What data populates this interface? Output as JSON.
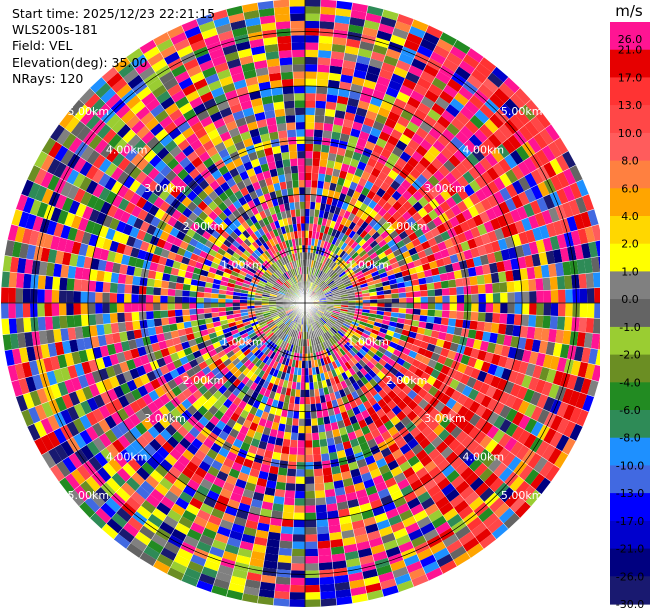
{
  "header": {
    "start_time": "Start time: 2025/12/23 22:21:15",
    "instrument": "WLS200s-181",
    "field": "Field: VEL",
    "elevation": "Elevation(deg): 35.00",
    "nrays": "NRays: 120"
  },
  "chart_data": {
    "type": "heatmap",
    "projection": "polar (PPI)",
    "field": "VEL",
    "unit": "m/s",
    "n_rays": 120,
    "range_rings_km": [
      1.0,
      2.0,
      3.0,
      4.0,
      5.0
    ],
    "ring_labels": [
      "1.00km",
      "2.00km",
      "3.00km",
      "4.00km",
      "5.00km"
    ],
    "max_range_km": 5.6,
    "colorbar": {
      "unit": "m/s",
      "ticks": [
        "26.0",
        "21.0",
        "17.0",
        "13.0",
        "10.0",
        "8.0",
        "6.0",
        "4.0",
        "2.0",
        "1.0",
        "0.0",
        "-1.0",
        "-2.0",
        "-4.0",
        "-6.0",
        "-8.0",
        "-10.0",
        "-13.0",
        "-17.0",
        "-21.0",
        "-26.0",
        "-30.0"
      ],
      "colors": [
        "#ff1493",
        "#ff1493",
        "#e60000",
        "#ff3333",
        "#ff4747",
        "#ff5c5c",
        "#ff8040",
        "#ffa500",
        "#ffd700",
        "#ffff00",
        "#808080",
        "#646464",
        "#9acd32",
        "#6b8e23",
        "#228b22",
        "#2e8b57",
        "#1e90ff",
        "#4169e1",
        "#0000ff",
        "#0000cd",
        "#000080",
        "#191970"
      ]
    },
    "regions": [
      {
        "sector": "northeast, 2-5 km",
        "dominant": "positive velocities (pink / red)"
      },
      {
        "sector": "southeast, 2-5 km",
        "dominant": "positive velocities (red / pink)"
      },
      {
        "sector": "south-southwest, 4.5-5.5 km",
        "dominant": "near-zero to negative (gray / green / yellow)"
      },
      {
        "sector": "near range < 1 km",
        "dominant": "yellow, gray and olive values"
      },
      {
        "sector": "remaining far range",
        "dominant": "noise spanning full scale"
      }
    ]
  }
}
